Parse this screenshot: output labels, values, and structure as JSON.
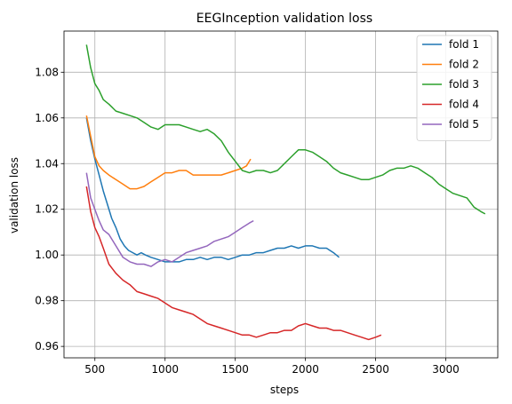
{
  "chart_data": {
    "type": "line",
    "title": "EEGInception validation loss",
    "xlabel": "steps",
    "ylabel": "validation loss",
    "xlim": [
      280,
      3370
    ],
    "ylim": [
      0.955,
      1.098
    ],
    "xticks": [
      500,
      1000,
      1500,
      2000,
      2500,
      3000
    ],
    "xtick_labels": [
      "500",
      "1000",
      "1500",
      "2000",
      "2500",
      "3000"
    ],
    "yticks": [
      0.96,
      0.98,
      1.0,
      1.02,
      1.04,
      1.06,
      1.08
    ],
    "ytick_labels": [
      "0.96",
      "0.98",
      "1.00",
      "1.02",
      "1.04",
      "1.06",
      "1.08"
    ],
    "grid": true,
    "legend_position": "top-right",
    "series": [
      {
        "name": "fold 1",
        "color": "#1f77b4",
        "points": [
          [
            440,
            1.06
          ],
          [
            470,
            1.05
          ],
          [
            500,
            1.042
          ],
          [
            530,
            1.035
          ],
          [
            560,
            1.028
          ],
          [
            590,
            1.022
          ],
          [
            620,
            1.016
          ],
          [
            650,
            1.012
          ],
          [
            680,
            1.007
          ],
          [
            710,
            1.004
          ],
          [
            740,
            1.002
          ],
          [
            770,
            1.001
          ],
          [
            800,
            1.0
          ],
          [
            830,
            1.001
          ],
          [
            860,
            1.0
          ],
          [
            900,
            0.999
          ],
          [
            950,
            0.998
          ],
          [
            1000,
            0.997
          ],
          [
            1050,
            0.997
          ],
          [
            1100,
            0.997
          ],
          [
            1150,
            0.998
          ],
          [
            1200,
            0.998
          ],
          [
            1250,
            0.999
          ],
          [
            1300,
            0.998
          ],
          [
            1350,
            0.999
          ],
          [
            1400,
            0.999
          ],
          [
            1450,
            0.998
          ],
          [
            1500,
            0.999
          ],
          [
            1550,
            1.0
          ],
          [
            1600,
            1.0
          ],
          [
            1650,
            1.001
          ],
          [
            1700,
            1.001
          ],
          [
            1750,
            1.002
          ],
          [
            1800,
            1.003
          ],
          [
            1850,
            1.003
          ],
          [
            1900,
            1.004
          ],
          [
            1950,
            1.003
          ],
          [
            2000,
            1.004
          ],
          [
            2050,
            1.004
          ],
          [
            2100,
            1.003
          ],
          [
            2150,
            1.003
          ],
          [
            2200,
            1.001
          ],
          [
            2240,
            0.999
          ]
        ]
      },
      {
        "name": "fold 2",
        "color": "#ff7f0e",
        "points": [
          [
            440,
            1.061
          ],
          [
            470,
            1.052
          ],
          [
            500,
            1.043
          ],
          [
            530,
            1.039
          ],
          [
            560,
            1.037
          ],
          [
            600,
            1.035
          ],
          [
            650,
            1.033
          ],
          [
            700,
            1.031
          ],
          [
            750,
            1.029
          ],
          [
            800,
            1.029
          ],
          [
            850,
            1.03
          ],
          [
            900,
            1.032
          ],
          [
            950,
            1.034
          ],
          [
            1000,
            1.036
          ],
          [
            1050,
            1.036
          ],
          [
            1100,
            1.037
          ],
          [
            1150,
            1.037
          ],
          [
            1200,
            1.035
          ],
          [
            1250,
            1.035
          ],
          [
            1300,
            1.035
          ],
          [
            1350,
            1.035
          ],
          [
            1400,
            1.035
          ],
          [
            1450,
            1.036
          ],
          [
            1500,
            1.037
          ],
          [
            1550,
            1.038
          ],
          [
            1580,
            1.039
          ],
          [
            1610,
            1.042
          ]
        ]
      },
      {
        "name": "fold 3",
        "color": "#2ca02c",
        "points": [
          [
            440,
            1.092
          ],
          [
            470,
            1.082
          ],
          [
            500,
            1.075
          ],
          [
            530,
            1.072
          ],
          [
            560,
            1.068
          ],
          [
            600,
            1.066
          ],
          [
            650,
            1.063
          ],
          [
            700,
            1.062
          ],
          [
            750,
            1.061
          ],
          [
            800,
            1.06
          ],
          [
            850,
            1.058
          ],
          [
            900,
            1.056
          ],
          [
            950,
            1.055
          ],
          [
            1000,
            1.057
          ],
          [
            1050,
            1.057
          ],
          [
            1100,
            1.057
          ],
          [
            1150,
            1.056
          ],
          [
            1200,
            1.055
          ],
          [
            1250,
            1.054
          ],
          [
            1300,
            1.055
          ],
          [
            1350,
            1.053
          ],
          [
            1400,
            1.05
          ],
          [
            1450,
            1.045
          ],
          [
            1500,
            1.041
          ],
          [
            1550,
            1.037
          ],
          [
            1600,
            1.036
          ],
          [
            1650,
            1.037
          ],
          [
            1700,
            1.037
          ],
          [
            1750,
            1.036
          ],
          [
            1800,
            1.037
          ],
          [
            1850,
            1.04
          ],
          [
            1900,
            1.043
          ],
          [
            1950,
            1.046
          ],
          [
            2000,
            1.046
          ],
          [
            2050,
            1.045
          ],
          [
            2100,
            1.043
          ],
          [
            2150,
            1.041
          ],
          [
            2200,
            1.038
          ],
          [
            2250,
            1.036
          ],
          [
            2300,
            1.035
          ],
          [
            2350,
            1.034
          ],
          [
            2400,
            1.033
          ],
          [
            2450,
            1.033
          ],
          [
            2500,
            1.034
          ],
          [
            2550,
            1.035
          ],
          [
            2600,
            1.037
          ],
          [
            2650,
            1.038
          ],
          [
            2700,
            1.038
          ],
          [
            2750,
            1.039
          ],
          [
            2800,
            1.038
          ],
          [
            2850,
            1.036
          ],
          [
            2900,
            1.034
          ],
          [
            2950,
            1.031
          ],
          [
            3000,
            1.029
          ],
          [
            3050,
            1.027
          ],
          [
            3100,
            1.026
          ],
          [
            3150,
            1.025
          ],
          [
            3200,
            1.021
          ],
          [
            3250,
            1.019
          ],
          [
            3280,
            1.018
          ]
        ]
      },
      {
        "name": "fold 4",
        "color": "#d62728",
        "points": [
          [
            440,
            1.03
          ],
          [
            470,
            1.019
          ],
          [
            500,
            1.012
          ],
          [
            530,
            1.008
          ],
          [
            560,
            1.003
          ],
          [
            600,
            0.996
          ],
          [
            650,
            0.992
          ],
          [
            700,
            0.989
          ],
          [
            750,
            0.987
          ],
          [
            800,
            0.984
          ],
          [
            850,
            0.983
          ],
          [
            900,
            0.982
          ],
          [
            950,
            0.981
          ],
          [
            1000,
            0.979
          ],
          [
            1050,
            0.977
          ],
          [
            1100,
            0.976
          ],
          [
            1150,
            0.975
          ],
          [
            1200,
            0.974
          ],
          [
            1250,
            0.972
          ],
          [
            1300,
            0.97
          ],
          [
            1350,
            0.969
          ],
          [
            1400,
            0.968
          ],
          [
            1450,
            0.967
          ],
          [
            1500,
            0.966
          ],
          [
            1550,
            0.965
          ],
          [
            1600,
            0.965
          ],
          [
            1650,
            0.964
          ],
          [
            1700,
            0.965
          ],
          [
            1750,
            0.966
          ],
          [
            1800,
            0.966
          ],
          [
            1850,
            0.967
          ],
          [
            1900,
            0.967
          ],
          [
            1950,
            0.969
          ],
          [
            2000,
            0.97
          ],
          [
            2050,
            0.969
          ],
          [
            2100,
            0.968
          ],
          [
            2150,
            0.968
          ],
          [
            2200,
            0.967
          ],
          [
            2250,
            0.967
          ],
          [
            2300,
            0.966
          ],
          [
            2350,
            0.965
          ],
          [
            2400,
            0.964
          ],
          [
            2450,
            0.963
          ],
          [
            2500,
            0.964
          ],
          [
            2540,
            0.965
          ]
        ]
      },
      {
        "name": "fold 5",
        "color": "#9467bd",
        "points": [
          [
            440,
            1.036
          ],
          [
            470,
            1.025
          ],
          [
            500,
            1.02
          ],
          [
            530,
            1.015
          ],
          [
            560,
            1.011
          ],
          [
            600,
            1.009
          ],
          [
            650,
            1.004
          ],
          [
            700,
            0.999
          ],
          [
            750,
            0.997
          ],
          [
            800,
            0.996
          ],
          [
            850,
            0.996
          ],
          [
            900,
            0.995
          ],
          [
            950,
            0.997
          ],
          [
            1000,
            0.998
          ],
          [
            1050,
            0.997
          ],
          [
            1100,
            0.999
          ],
          [
            1150,
            1.001
          ],
          [
            1200,
            1.002
          ],
          [
            1250,
            1.003
          ],
          [
            1300,
            1.004
          ],
          [
            1350,
            1.006
          ],
          [
            1400,
            1.007
          ],
          [
            1450,
            1.008
          ],
          [
            1500,
            1.01
          ],
          [
            1550,
            1.012
          ],
          [
            1600,
            1.014
          ],
          [
            1630,
            1.015
          ]
        ]
      }
    ]
  }
}
